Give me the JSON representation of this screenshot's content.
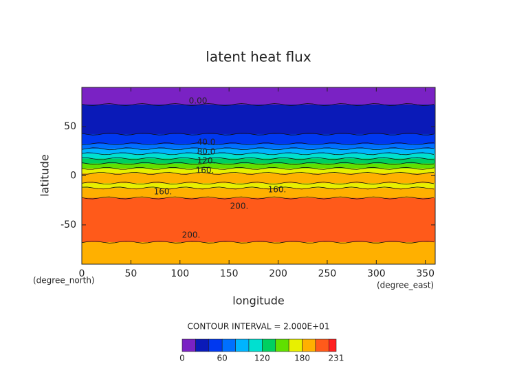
{
  "chart_data": {
    "type": "contour",
    "title": "latent heat flux",
    "x_label": "longitude",
    "y_label": "latitude",
    "x_unit": "(degree_east)",
    "y_unit": "(degree_north)",
    "footer": "CONTOUR INTERVAL = 2.000E+01",
    "xlim": [
      0,
      360
    ],
    "xticks": [
      0,
      50,
      100,
      150,
      200,
      250,
      300,
      350
    ],
    "ylim": [
      -90,
      90
    ],
    "yticks": [
      -50,
      0,
      50
    ],
    "lat": [
      90,
      85,
      80,
      75,
      70,
      65,
      60,
      55,
      50,
      45,
      40,
      35,
      30,
      25,
      20,
      15,
      10,
      5,
      0,
      -5,
      -10,
      -15,
      -20,
      -25,
      -30,
      -35,
      -40,
      -45,
      -50,
      -55,
      -60,
      -65,
      -70,
      -75,
      -80,
      -85,
      -90
    ],
    "values": [
      10,
      10,
      10,
      15,
      30,
      30,
      35,
      35,
      38,
      38,
      45,
      55,
      70,
      90,
      110,
      130,
      150,
      170,
      185,
      185,
      175,
      190,
      195,
      205,
      210,
      210,
      212,
      215,
      212,
      210,
      208,
      200,
      195,
      190,
      188,
      185,
      185
    ],
    "levels": [
      0,
      20,
      40,
      60,
      80,
      100,
      120,
      140,
      160,
      180,
      200,
      220,
      231
    ],
    "colors": [
      "#7a22c4",
      "#0a1ab8",
      "#0038f0",
      "#0070ff",
      "#00b4ff",
      "#00e0d0",
      "#00d060",
      "#60e000",
      "#e8f000",
      "#ffb000",
      "#ff5a1a",
      "#ff2020",
      "#ffa0a0"
    ],
    "colorbar_ticks": [
      0,
      60,
      120,
      180,
      231
    ],
    "contour_labels": [
      "0.00",
      "40.0",
      "80.0",
      "120.",
      "160.",
      "160.",
      "160.",
      "200.",
      "200."
    ]
  }
}
